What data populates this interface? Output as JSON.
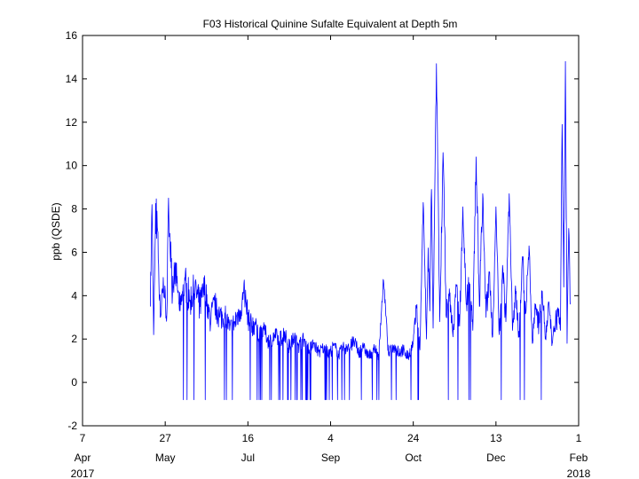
{
  "chart_data": {
    "type": "line",
    "title": "F03 Historical Quinine Sufalte Equivalent at Depth 5m",
    "ylabel": "ppb (QSDE)",
    "xlabel": "",
    "ylim": [
      -2,
      16
    ],
    "yticks": [
      "-2",
      "0",
      "2",
      "4",
      "6",
      "8",
      "10",
      "12",
      "14",
      "16"
    ],
    "xlim": [
      "2017-04-07",
      "2018-02-01"
    ],
    "xticks": [
      {
        "date": "2017-04-07",
        "day": "7",
        "month": "Apr"
      },
      {
        "date": "2017-05-27",
        "day": "27",
        "month": "May"
      },
      {
        "date": "2017-07-16",
        "day": "16",
        "month": "Jul"
      },
      {
        "date": "2017-09-04",
        "day": "4",
        "month": "Sep"
      },
      {
        "date": "2017-10-24",
        "day": "24",
        "month": "Oct"
      },
      {
        "date": "2017-12-13",
        "day": "13",
        "month": "Dec"
      },
      {
        "date": "2018-02-01",
        "day": "1",
        "month": "Feb"
      }
    ],
    "year_labels": {
      "start": "2017",
      "end": "2018"
    },
    "grid": false,
    "color": "#0000ff",
    "series": [
      {
        "x": [
          "2017-05-18",
          "2017-05-19",
          "2017-05-20",
          "2017-05-21",
          "2017-05-22",
          "2017-05-24",
          "2017-05-26",
          "2017-05-28",
          "2017-05-29",
          "2017-05-31",
          "2017-06-02",
          "2017-06-05",
          "2017-06-08",
          "2017-06-11",
          "2017-06-14",
          "2017-06-17",
          "2017-06-20",
          "2017-06-23",
          "2017-06-26",
          "2017-06-29",
          "2017-07-02",
          "2017-07-05",
          "2017-07-08",
          "2017-07-11",
          "2017-07-14",
          "2017-07-17",
          "2017-07-20",
          "2017-07-23",
          "2017-07-26",
          "2017-07-29",
          "2017-08-01",
          "2017-08-04",
          "2017-08-07",
          "2017-08-10",
          "2017-08-13",
          "2017-08-16",
          "2017-08-19",
          "2017-08-22",
          "2017-08-25",
          "2017-08-28",
          "2017-08-31",
          "2017-09-03",
          "2017-09-06",
          "2017-09-09",
          "2017-09-12",
          "2017-09-15",
          "2017-09-18",
          "2017-09-21",
          "2017-09-24",
          "2017-09-27",
          "2017-09-30",
          "2017-10-03",
          "2017-10-06",
          "2017-10-09",
          "2017-10-12",
          "2017-10-15",
          "2017-10-18",
          "2017-10-21",
          "2017-10-24",
          "2017-10-26",
          "2017-10-28",
          "2017-10-30",
          "2017-11-01",
          "2017-11-02",
          "2017-11-03",
          "2017-11-04",
          "2017-11-05",
          "2017-11-07",
          "2017-11-09",
          "2017-11-11",
          "2017-11-13",
          "2017-11-15",
          "2017-11-17",
          "2017-11-19",
          "2017-11-21",
          "2017-11-23",
          "2017-11-25",
          "2017-11-27",
          "2017-11-29",
          "2017-12-01",
          "2017-12-03",
          "2017-12-05",
          "2017-12-07",
          "2017-12-09",
          "2017-12-11",
          "2017-12-13",
          "2017-12-15",
          "2017-12-17",
          "2017-12-19",
          "2017-12-21",
          "2017-12-23",
          "2017-12-25",
          "2017-12-27",
          "2017-12-29",
          "2017-12-31",
          "2018-01-02",
          "2018-01-04",
          "2018-01-06",
          "2018-01-08",
          "2018-01-10",
          "2018-01-12",
          "2018-01-14",
          "2018-01-16",
          "2018-01-18",
          "2018-01-20",
          "2018-01-21",
          "2018-01-22",
          "2018-01-23",
          "2018-01-24",
          "2018-01-25",
          "2018-01-26",
          "2018-01-27"
        ],
        "y": [
          3.5,
          8.2,
          2.2,
          6.8,
          7.9,
          3.0,
          4.4,
          3.2,
          8.5,
          4.5,
          5.4,
          3.3,
          4.7,
          3.8,
          4.3,
          3.5,
          4.4,
          2.9,
          3.6,
          3.0,
          3.2,
          2.4,
          2.8,
          3.3,
          4.1,
          2.6,
          2.7,
          2.1,
          2.4,
          1.8,
          2.2,
          1.9,
          2.3,
          1.6,
          2.1,
          1.7,
          2.0,
          1.5,
          1.8,
          1.4,
          1.6,
          1.3,
          1.7,
          1.3,
          1.6,
          1.5,
          1.9,
          1.4,
          1.6,
          1.2,
          1.5,
          1.3,
          4.7,
          1.3,
          1.7,
          1.4,
          1.5,
          1.2,
          1.8,
          3.5,
          1.5,
          8.3,
          2.0,
          6.2,
          3.3,
          8.9,
          2.5,
          14.7,
          2.8,
          10.6,
          3.0,
          4.0,
          2.1,
          4.5,
          2.6,
          8.1,
          3.6,
          4.5,
          2.4,
          10.4,
          3.5,
          8.7,
          3.0,
          5.1,
          2.1,
          8.1,
          2.2,
          5.4,
          2.8,
          8.7,
          2.4,
          4.1,
          2.1,
          5.8,
          3.2,
          6.3,
          1.8,
          3.6,
          2.7,
          4.2,
          2.1,
          3.7,
          1.8,
          2.7,
          3.4,
          2.4,
          11.9,
          4.4,
          14.8,
          1.8,
          7.1,
          3.6
        ]
      }
    ],
    "dropouts_to": -0.8
  }
}
